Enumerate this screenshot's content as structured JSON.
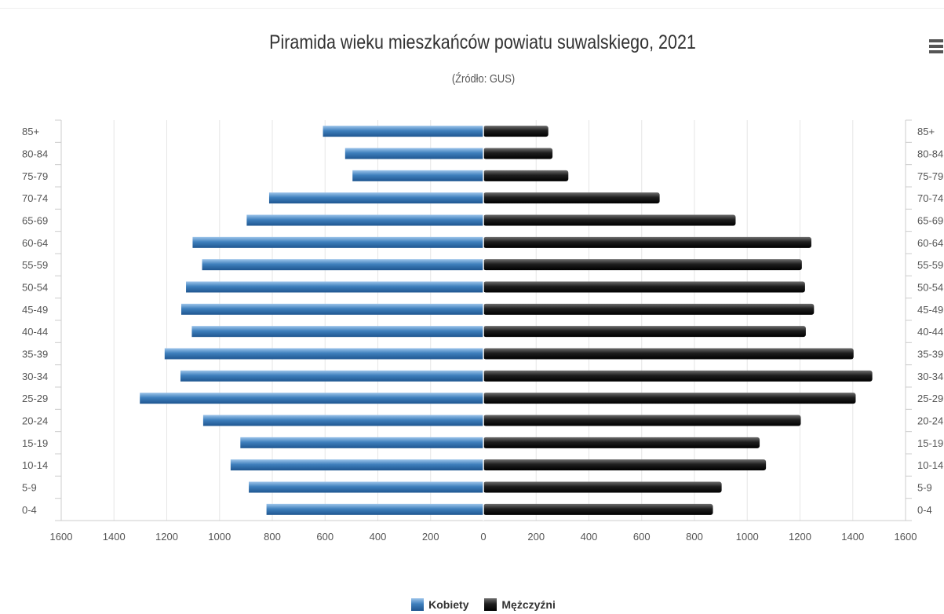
{
  "chart_data": {
    "type": "bar",
    "orientation": "horizontal-pyramid",
    "title": "Piramida wieku mieszkańców powiatu suwalskiego, 2021",
    "subtitle": "(Źródło: GUS)",
    "categories": [
      "85+",
      "80-84",
      "75-79",
      "70-74",
      "65-69",
      "60-64",
      "55-59",
      "50-54",
      "45-49",
      "40-44",
      "35-39",
      "30-34",
      "25-29",
      "20-24",
      "15-19",
      "10-14",
      "5-9",
      "0-4"
    ],
    "series": [
      {
        "name": "Kobiety",
        "color": "#3a78b4",
        "values": [
          608,
          524,
          496,
          812,
          897,
          1102,
          1066,
          1127,
          1145,
          1105,
          1208,
          1148,
          1302,
          1062,
          921,
          958,
          889,
          822
        ]
      },
      {
        "name": "Mężczyźni",
        "color": "#1a1a1a",
        "values": [
          246,
          262,
          322,
          668,
          956,
          1243,
          1207,
          1219,
          1253,
          1222,
          1403,
          1474,
          1411,
          1203,
          1047,
          1071,
          903,
          870
        ]
      }
    ],
    "xlim": [
      -1600,
      1600
    ],
    "x_ticks": [
      "1600",
      "1400",
      "1200",
      "1000",
      "800",
      "600",
      "400",
      "200",
      "0",
      "200",
      "400",
      "600",
      "800",
      "1000",
      "1200",
      "1400",
      "1600"
    ],
    "grid": true,
    "legend_position": "bottom-center"
  },
  "ui": {
    "menu_icon": "hamburger-menu-icon"
  }
}
